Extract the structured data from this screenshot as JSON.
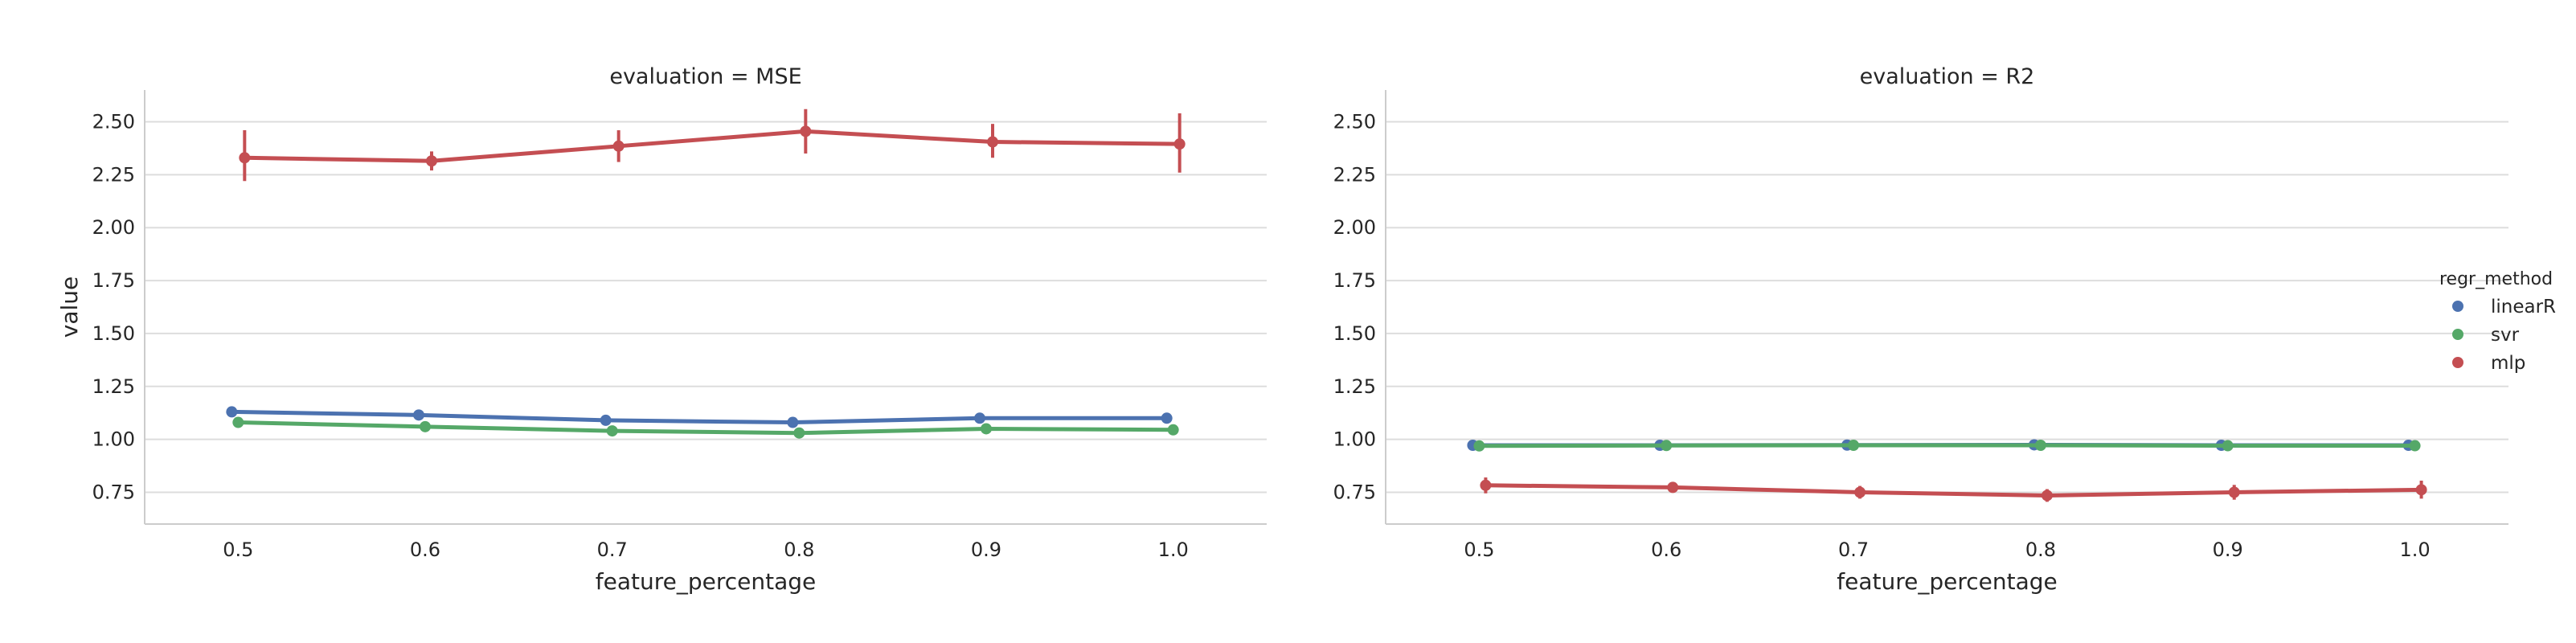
{
  "chart_data": {
    "type": "line",
    "hue_label": "regr_method",
    "x": [
      0.5,
      0.6,
      0.7,
      0.8,
      0.9,
      1.0
    ],
    "x_tick_labels": [
      "0.5",
      "0.6",
      "0.7",
      "0.8",
      "0.9",
      "1.0"
    ],
    "xlabel": "feature_percentage",
    "ylabel": "value",
    "ylim": [
      0.6,
      2.65
    ],
    "y_ticks": [
      0.75,
      1.0,
      1.25,
      1.5,
      1.75,
      2.0,
      2.25,
      2.5
    ],
    "y_tick_labels": [
      "0.75",
      "1.00",
      "1.25",
      "1.50",
      "1.75",
      "2.00",
      "2.25",
      "2.50"
    ],
    "grid": "horizontal",
    "legend_position": "right",
    "legend": [
      {
        "name": "linearR",
        "color": "#4c72b0"
      },
      {
        "name": "svr",
        "color": "#55a868"
      },
      {
        "name": "mlp",
        "color": "#c44e52"
      }
    ],
    "panels": [
      {
        "title": "evaluation = MSE",
        "show_ylabel": true,
        "series": [
          {
            "name": "linearR",
            "color": "#4c72b0",
            "values": [
              1.13,
              1.115,
              1.09,
              1.08,
              1.1,
              1.1
            ],
            "ci_low": [
              1.12,
              1.105,
              1.08,
              1.07,
              1.09,
              1.09
            ],
            "ci_high": [
              1.14,
              1.125,
              1.1,
              1.09,
              1.11,
              1.11
            ]
          },
          {
            "name": "svr",
            "color": "#55a868",
            "values": [
              1.08,
              1.06,
              1.04,
              1.03,
              1.05,
              1.045
            ],
            "ci_low": [
              1.07,
              1.05,
              1.03,
              1.02,
              1.04,
              1.035
            ],
            "ci_high": [
              1.09,
              1.07,
              1.05,
              1.04,
              1.06,
              1.055
            ]
          },
          {
            "name": "mlp",
            "color": "#c44e52",
            "values": [
              2.33,
              2.315,
              2.385,
              2.455,
              2.405,
              2.395
            ],
            "ci_low": [
              2.22,
              2.27,
              2.31,
              2.35,
              2.33,
              2.26
            ],
            "ci_high": [
              2.46,
              2.36,
              2.46,
              2.56,
              2.49,
              2.54
            ]
          }
        ]
      },
      {
        "title": "evaluation = R2",
        "show_ylabel": false,
        "series": [
          {
            "name": "linearR",
            "color": "#4c72b0",
            "values": [
              0.972,
              0.972,
              0.973,
              0.974,
              0.972,
              0.972
            ],
            "ci_low": [
              0.965,
              0.965,
              0.966,
              0.967,
              0.965,
              0.965
            ],
            "ci_high": [
              0.979,
              0.979,
              0.98,
              0.981,
              0.979,
              0.979
            ]
          },
          {
            "name": "svr",
            "color": "#55a868",
            "values": [
              0.969,
              0.971,
              0.972,
              0.972,
              0.97,
              0.97
            ],
            "ci_low": [
              0.962,
              0.964,
              0.965,
              0.965,
              0.963,
              0.963
            ],
            "ci_high": [
              0.976,
              0.978,
              0.979,
              0.979,
              0.977,
              0.977
            ]
          },
          {
            "name": "mlp",
            "color": "#c44e52",
            "values": [
              0.783,
              0.773,
              0.75,
              0.735,
              0.75,
              0.762
            ],
            "ci_low": [
              0.745,
              0.755,
              0.72,
              0.705,
              0.715,
              0.72
            ],
            "ci_high": [
              0.82,
              0.793,
              0.78,
              0.765,
              0.785,
              0.805
            ]
          }
        ]
      }
    ]
  }
}
